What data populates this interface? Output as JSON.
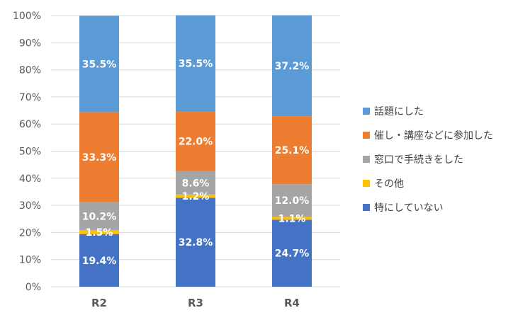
{
  "chart_data": {
    "type": "bar",
    "stacked": true,
    "categories": [
      "R2",
      "R3",
      "R4"
    ],
    "y_ticks": [
      "0%",
      "10%",
      "20%",
      "30%",
      "40%",
      "50%",
      "60%",
      "70%",
      "80%",
      "90%",
      "100%"
    ],
    "ylim": [
      0,
      100
    ],
    "grid": true,
    "legend_position": "right",
    "series": [
      {
        "name": "特にしていない",
        "color": "#4472C4",
        "values": [
          19.4,
          32.8,
          24.7
        ],
        "labels": [
          "19.4%",
          "32.8%",
          "24.7%"
        ]
      },
      {
        "name": "その他",
        "color": "#FFC000",
        "values": [
          1.5,
          1.2,
          1.1
        ],
        "labels": [
          "1.5%",
          "1.2%",
          "1.1%"
        ]
      },
      {
        "name": "窓口で手続きをした",
        "color": "#A5A5A5",
        "values": [
          10.2,
          8.6,
          12.0
        ],
        "labels": [
          "10.2%",
          "8.6%",
          "12.0%"
        ]
      },
      {
        "name": "催し・講座などに参加した",
        "color": "#ED7D31",
        "values": [
          33.3,
          22.0,
          25.1
        ],
        "labels": [
          "33.3%",
          "22.0%",
          "25.1%"
        ]
      },
      {
        "name": "話題にした",
        "color": "#5B9BD5",
        "values": [
          35.5,
          35.5,
          37.2
        ],
        "labels": [
          "35.5%",
          "35.5%",
          "37.2%"
        ]
      }
    ],
    "legend_order": [
      4,
      3,
      2,
      1,
      0
    ]
  }
}
